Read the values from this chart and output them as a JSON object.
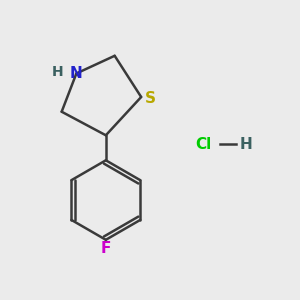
{
  "background_color": "#ebebeb",
  "bond_color": "#3a3a3a",
  "bond_width": 1.8,
  "N_color": "#2222cc",
  "S_color": "#b8a800",
  "F_color": "#cc00cc",
  "Cl_color": "#00cc00",
  "H_color": "#3a6060",
  "font_size": 11,
  "xlim": [
    0,
    10
  ],
  "ylim": [
    0,
    10
  ],
  "hcl_x": 7.2,
  "hcl_y": 5.2
}
